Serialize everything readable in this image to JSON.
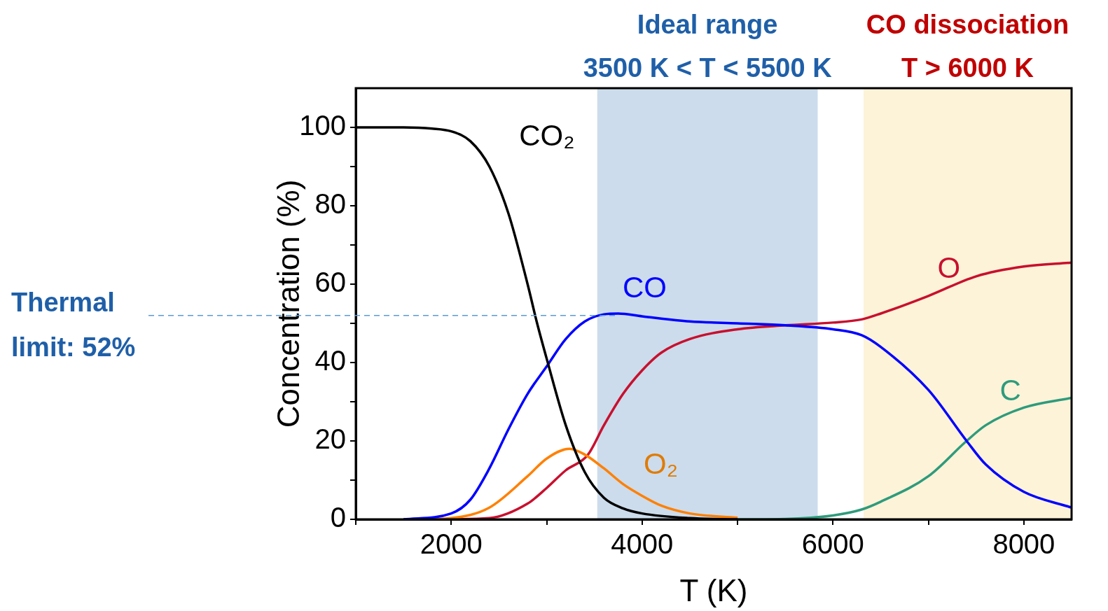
{
  "chart_data": {
    "type": "line",
    "xlabel": "T (K)",
    "ylabel": "Concentration (%)",
    "xlim": [
      1000,
      8500
    ],
    "xticks": [
      {
        "value": 1000,
        "label": null
      },
      2000,
      {
        "value": 3000,
        "label": null
      },
      4000,
      {
        "value": 5000,
        "label": null
      },
      6000,
      {
        "value": 7000,
        "label": null
      },
      8000
    ],
    "ylim": [
      0,
      110
    ],
    "yticks": [
      0,
      {
        "value": 10,
        "label": null
      },
      20,
      {
        "value": 30,
        "label": null
      },
      40,
      {
        "value": 50,
        "label": null
      },
      60,
      {
        "value": 70,
        "label": null
      },
      80,
      {
        "value": 90,
        "label": null
      },
      100
    ],
    "legend": false,
    "marker": "none",
    "line_style": "solid",
    "series": [
      {
        "name": "CO₂",
        "color": "#000000",
        "x": [
          1000,
          1500,
          1800,
          2000,
          2200,
          2400,
          2600,
          2800,
          2900,
          3000,
          3200,
          3400,
          3600,
          3800,
          4000,
          4500,
          5000
        ],
        "values": [
          100,
          100,
          99.7,
          99,
          96.5,
          90,
          78,
          60,
          50,
          41,
          24,
          12,
          5.5,
          2.8,
          1.5,
          0.3,
          0
        ]
      },
      {
        "name": "CO",
        "color": "#0000ff",
        "x": [
          1500,
          2000,
          2200,
          2400,
          2600,
          2800,
          3000,
          3200,
          3400,
          3600,
          3750,
          4000,
          4500,
          5000,
          5500,
          6000,
          6300,
          6500,
          7000,
          7400,
          7600,
          8000,
          8500
        ],
        "values": [
          0,
          1.5,
          5,
          13,
          23,
          32,
          39,
          46,
          50.5,
          52.3,
          52.5,
          51.8,
          50.5,
          50,
          49.5,
          48.5,
          47,
          44,
          33,
          20,
          14,
          7,
          3
        ]
      },
      {
        "name": "O₂",
        "color": "#ff8000",
        "x": [
          1700,
          2000,
          2400,
          2800,
          3000,
          3240,
          3400,
          3600,
          3800,
          4000,
          4200,
          4500,
          5000
        ],
        "values": [
          0,
          0.3,
          3,
          11,
          15.5,
          18,
          16.5,
          13,
          9,
          6,
          3.5,
          1.5,
          0.4
        ]
      },
      {
        "name": "O",
        "color": "#c8102e",
        "x": [
          2000,
          2400,
          2800,
          3000,
          3200,
          3430,
          3600,
          3800,
          4000,
          4200,
          4500,
          5000,
          5500,
          6000,
          6300,
          6500,
          7000,
          7500,
          8000,
          8500
        ],
        "values": [
          0,
          0.3,
          4,
          8,
          12.5,
          16.4,
          24,
          32,
          38,
          42.5,
          46,
          48.5,
          49.5,
          50.2,
          51,
          52.5,
          57,
          62,
          64.5,
          65.5
        ]
      },
      {
        "name": "C",
        "color": "#2e9b7b",
        "x": [
          5000,
          5500,
          6000,
          6300,
          6500,
          7000,
          7400,
          7600,
          8000,
          8500
        ],
        "values": [
          0,
          0.1,
          1,
          2.5,
          4.5,
          11,
          20,
          24,
          28.5,
          31
        ]
      }
    ],
    "bands": [
      {
        "axis": "x",
        "from": 3530,
        "to": 5840,
        "color": "#ccdcec",
        "label": "Ideal range\n3500 K < T < 5500 K"
      },
      {
        "axis": "x",
        "from": 6320,
        "to": 8500,
        "color": "#fdf3d9",
        "label": "CO dissociation\nT > 6000 K"
      }
    ],
    "ref_lines": [
      {
        "axis": "y",
        "value": 52,
        "label": "Thermal\nlimit: 52%",
        "color": "#5b9bd5",
        "line_style": "dashed"
      }
    ]
  }
}
